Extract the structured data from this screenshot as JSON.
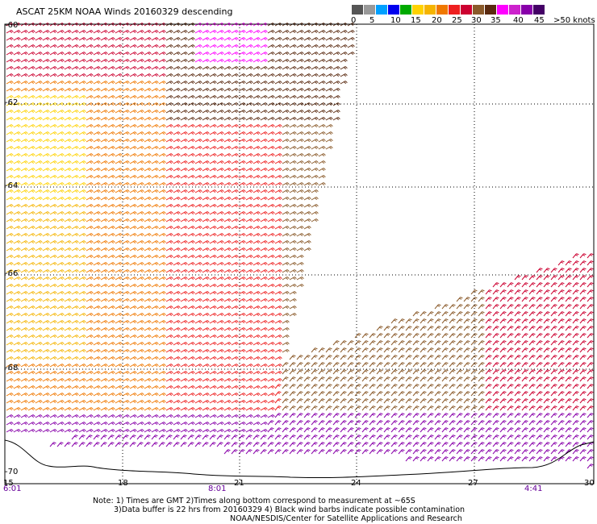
{
  "title": "ASCAT 25KM NOAA Winds 20160329 descending",
  "legend": {
    "colors": [
      "#555555",
      "#999999",
      "#00a0ff",
      "#0000ee",
      "#00aa00",
      "#ffd200",
      "#f5b400",
      "#f07800",
      "#ee2020",
      "#cc0030",
      "#8a5a2a",
      "#5a2a10",
      "#ff00ff",
      "#cc22cc",
      "#8800aa",
      "#440066"
    ],
    "labels": [
      "0",
      "5",
      "10",
      "15",
      "20",
      "25",
      "30",
      "35",
      "40",
      "45",
      ">50 knots"
    ]
  },
  "latitudes": [
    "-60",
    "-62",
    "-64",
    "-66",
    "-68",
    "-70"
  ],
  "longitudes": [
    "15",
    "18",
    "21",
    "24",
    "27",
    "30"
  ],
  "times": [
    "6:01",
    "8:01",
    "4:41"
  ],
  "notes": [
    "Note: 1) Times are GMT 2)Times along bottom correspond to measurement at ~65S",
    "3)Data buffer is 22 hrs from 20160329 4) Black wind barbs indicate possible contamination",
    "NOAA/NESDIS/Center for Satellite Applications and Research"
  ]
}
